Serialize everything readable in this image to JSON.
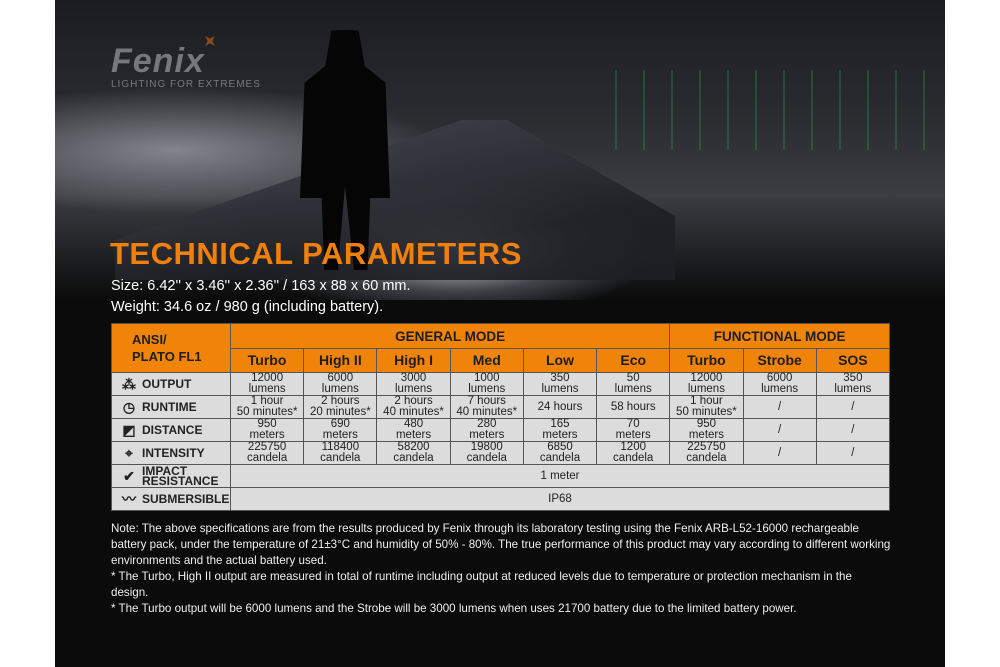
{
  "brand": {
    "name": "Fenix",
    "tagline": "LIGHTING FOR EXTREMES"
  },
  "title": "TECHNICAL PARAMETERS",
  "size": "Size: 6.42'' x 3.46'' x 2.36'' / 163 x 88 x 60 mm.",
  "weight": "Weight: 34.6 oz / 980 g (including battery).",
  "accent_color": "#f08409",
  "table": {
    "corner": [
      "ANSI/",
      "PLATO FL1"
    ],
    "groups": [
      {
        "label": "GENERAL MODE"
      },
      {
        "label": "FUNCTIONAL MODE"
      }
    ],
    "modes": [
      "Turbo",
      "High II",
      "High I",
      "Med",
      "Low",
      "Eco",
      "Turbo",
      "Strobe",
      "SOS"
    ],
    "rows": [
      {
        "label": "OUTPUT",
        "icon": "light-burst-icon",
        "cells": [
          [
            "12000",
            "lumens"
          ],
          [
            "6000",
            "lumens"
          ],
          [
            "3000",
            "lumens"
          ],
          [
            "1000",
            "lumens"
          ],
          [
            "350",
            "lumens"
          ],
          [
            "50",
            "lumens"
          ],
          [
            "12000",
            "lumens"
          ],
          [
            "6000",
            "lumens"
          ],
          [
            "350",
            "lumens"
          ]
        ]
      },
      {
        "label": "RUNTIME",
        "icon": "clock-icon",
        "cells": [
          [
            "1 hour",
            "50 minutes*"
          ],
          [
            "2 hours",
            "20 minutes*"
          ],
          [
            "2 hours",
            "40 minutes*"
          ],
          [
            "7 hours",
            "40 minutes*"
          ],
          [
            "24 hours"
          ],
          [
            "58 hours"
          ],
          [
            "1 hour",
            "50 minutes*"
          ],
          [
            "/"
          ],
          [
            "/"
          ]
        ]
      },
      {
        "label": "DISTANCE",
        "icon": "beam-distance-icon",
        "cells": [
          [
            "950",
            "meters"
          ],
          [
            "690",
            "meters"
          ],
          [
            "480",
            "meters"
          ],
          [
            "280",
            "meters"
          ],
          [
            "165",
            "meters"
          ],
          [
            "70",
            "meters"
          ],
          [
            "950",
            "meters"
          ],
          [
            "/"
          ],
          [
            "/"
          ]
        ]
      },
      {
        "label": "INTENSITY",
        "icon": "target-icon",
        "cells": [
          [
            "225750",
            "candela"
          ],
          [
            "118400",
            "candela"
          ],
          [
            "58200",
            "candela"
          ],
          [
            "19800",
            "candela"
          ],
          [
            "6850",
            "candela"
          ],
          [
            "1200",
            "candela"
          ],
          [
            "225750",
            "candela"
          ],
          [
            "/"
          ],
          [
            "/"
          ]
        ]
      }
    ],
    "impact": {
      "label": [
        "IMPACT",
        "RESISTANCE"
      ],
      "icon": "impact-check-icon",
      "value": "1 meter"
    },
    "submersible": {
      "label": "SUBMERSIBLE",
      "icon": "wave-icon",
      "value": "IP68"
    }
  },
  "notes": [
    "Note: The above specifications are from the results produced by Fenix through its laboratory testing using the Fenix ARB-L52-16000 rechargeable battery pack, under the temperature of 21±3°C and humidity of 50% - 80%. The true performance of this product may vary according to different working environments and the actual battery used.",
    "* The Turbo, High II output are measured in total of runtime including output at reduced levels due to temperature or protection mechanism in the design.",
    "* The Turbo output will be 6000 lumens and the Strobe will be 3000 lumens when uses 21700 battery due to the limited battery power."
  ]
}
